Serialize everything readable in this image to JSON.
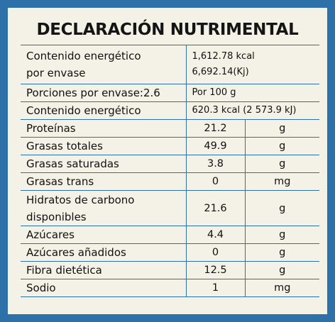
{
  "title": "DECLARACIÓN NUTRIMENTAL",
  "energy_per_pack": {
    "label_line1": "Contenido energético",
    "label_line2": "por envase",
    "kcal": "1,612.78 kcal",
    "kj": "6,692.14(Kj)"
  },
  "portions": {
    "label": "Porciones por envase:2.6",
    "value": "Por 100 g"
  },
  "energy_per_100": {
    "label": "Contenido energético",
    "value": "620.3 kcal (2 573.9 kJ)"
  },
  "nutrients": [
    {
      "name": "Proteínas",
      "amount": "21.2",
      "unit": "g"
    },
    {
      "name": "Grasas totales",
      "amount": "49.9",
      "unit": "g"
    },
    {
      "name": "Grasas saturadas",
      "amount": "3.8",
      "unit": "g"
    },
    {
      "name": "Grasas trans",
      "amount": "0",
      "unit": "mg"
    },
    {
      "name": "Hidratos de carbono",
      "name_line2": "disponibles",
      "amount": "21.6",
      "unit": "g"
    },
    {
      "name": "Azúcares",
      "amount": "4.4",
      "unit": "g"
    },
    {
      "name": "Azúcares añadidos",
      "amount": "0",
      "unit": "g"
    },
    {
      "name": "Fibra dietética",
      "amount": "12.5",
      "unit": "g"
    },
    {
      "name": "Sodio",
      "amount": "1",
      "unit": "mg"
    }
  ],
  "colors": {
    "border": "#2e71a8",
    "panel": "#f4f1e6"
  }
}
